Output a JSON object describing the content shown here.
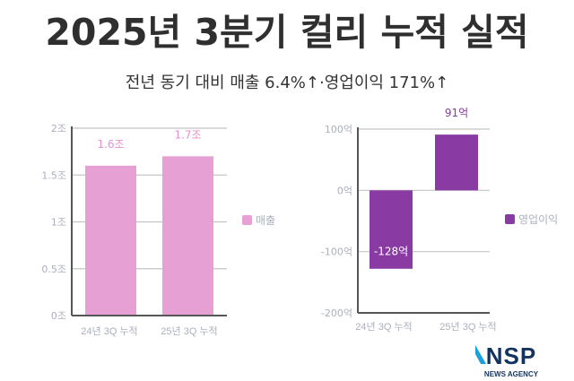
{
  "title": "2025년 3분기 컬리 누적 실적",
  "subtitle": "전년 동기 대비 매출 6.4%↑·영업이익 171%↑",
  "logo": {
    "text": "NSP",
    "subtext": "NEWS AGENCY"
  },
  "chart_data": [
    {
      "type": "bar",
      "categories": [
        "24년 3Q 누적",
        "25년 3Q 누적"
      ],
      "series": [
        {
          "name": "매출",
          "values": [
            1.6,
            1.7
          ],
          "labels": [
            "1.6조",
            "1.7조"
          ]
        }
      ],
      "yticks": [
        0,
        0.5,
        1,
        1.5,
        2
      ],
      "ytick_labels": [
        "0조",
        "0.5조",
        "1조",
        "1.5조",
        "2조"
      ],
      "ylim": [
        0,
        2
      ],
      "grid": true,
      "legend": "right",
      "color": "#e6a0d4",
      "label_color": "#e88fd0"
    },
    {
      "type": "bar",
      "categories": [
        "24년 3Q 누적",
        "25년 3Q 누적"
      ],
      "series": [
        {
          "name": "영업이익",
          "values": [
            -128,
            91
          ],
          "labels": [
            "-128억",
            "91억"
          ]
        }
      ],
      "yticks": [
        -200,
        -100,
        0,
        100
      ],
      "ytick_labels": [
        "-200억",
        "-100억",
        "0억",
        "100억"
      ],
      "ylim": [
        -200,
        100
      ],
      "grid": true,
      "legend": "right",
      "color": "#8a3aa3",
      "label_color": "#8a3aa3"
    }
  ]
}
